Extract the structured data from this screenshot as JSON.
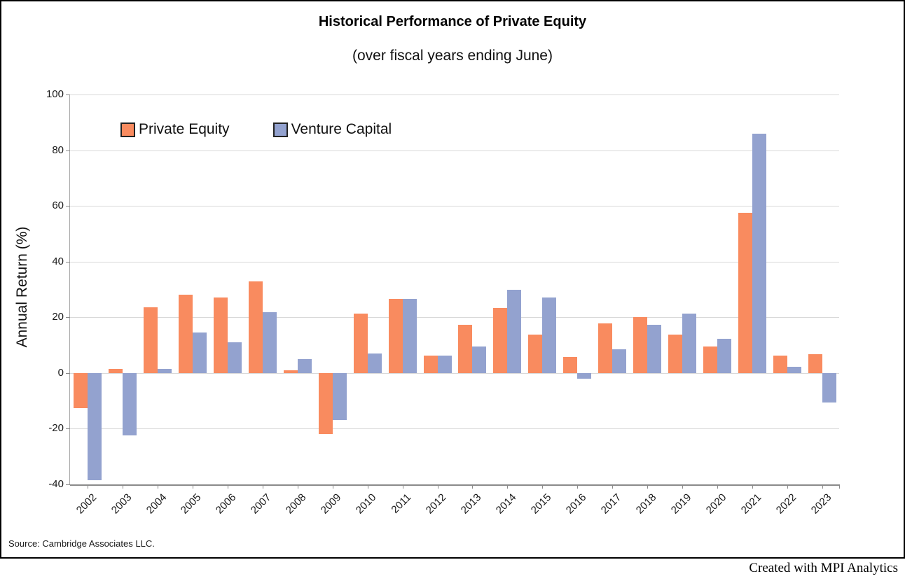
{
  "credit": "Created with MPI Analytics",
  "chart_data": {
    "type": "bar",
    "title": "Historical Performance of Private Equity",
    "subtitle": "(over fiscal years ending June)",
    "ylabel": "Annual Return (%)",
    "source": "Source: Cambridge Associates LLC.",
    "ylim": [
      -40,
      100
    ],
    "ytick_step": 20,
    "grid": true,
    "legend_position": "top-left",
    "categories": [
      "2002",
      "2003",
      "2004",
      "2005",
      "2006",
      "2007",
      "2008",
      "2009",
      "2010",
      "2011",
      "2012",
      "2013",
      "2014",
      "2015",
      "2016",
      "2017",
      "2018",
      "2019",
      "2020",
      "2021",
      "2022",
      "2023"
    ],
    "series": [
      {
        "name": "Private Equity",
        "color": "#F98B5F",
        "values": [
          -12.5,
          1.5,
          23.5,
          28.2,
          27.0,
          32.8,
          1.0,
          -22.0,
          21.4,
          26.5,
          6.2,
          17.3,
          23.4,
          13.9,
          5.8,
          17.9,
          20.0,
          13.9,
          9.4,
          57.5,
          6.2,
          6.7
        ]
      },
      {
        "name": "Venture Capital",
        "color": "#93A2CF",
        "values": [
          -38.5,
          -22.5,
          1.5,
          14.5,
          11.0,
          21.8,
          5.0,
          -17.0,
          7.0,
          26.5,
          6.2,
          9.4,
          30.0,
          27.1,
          -2.0,
          8.5,
          17.4,
          21.4,
          12.3,
          85.8,
          2.3,
          -10.7
        ]
      }
    ]
  }
}
